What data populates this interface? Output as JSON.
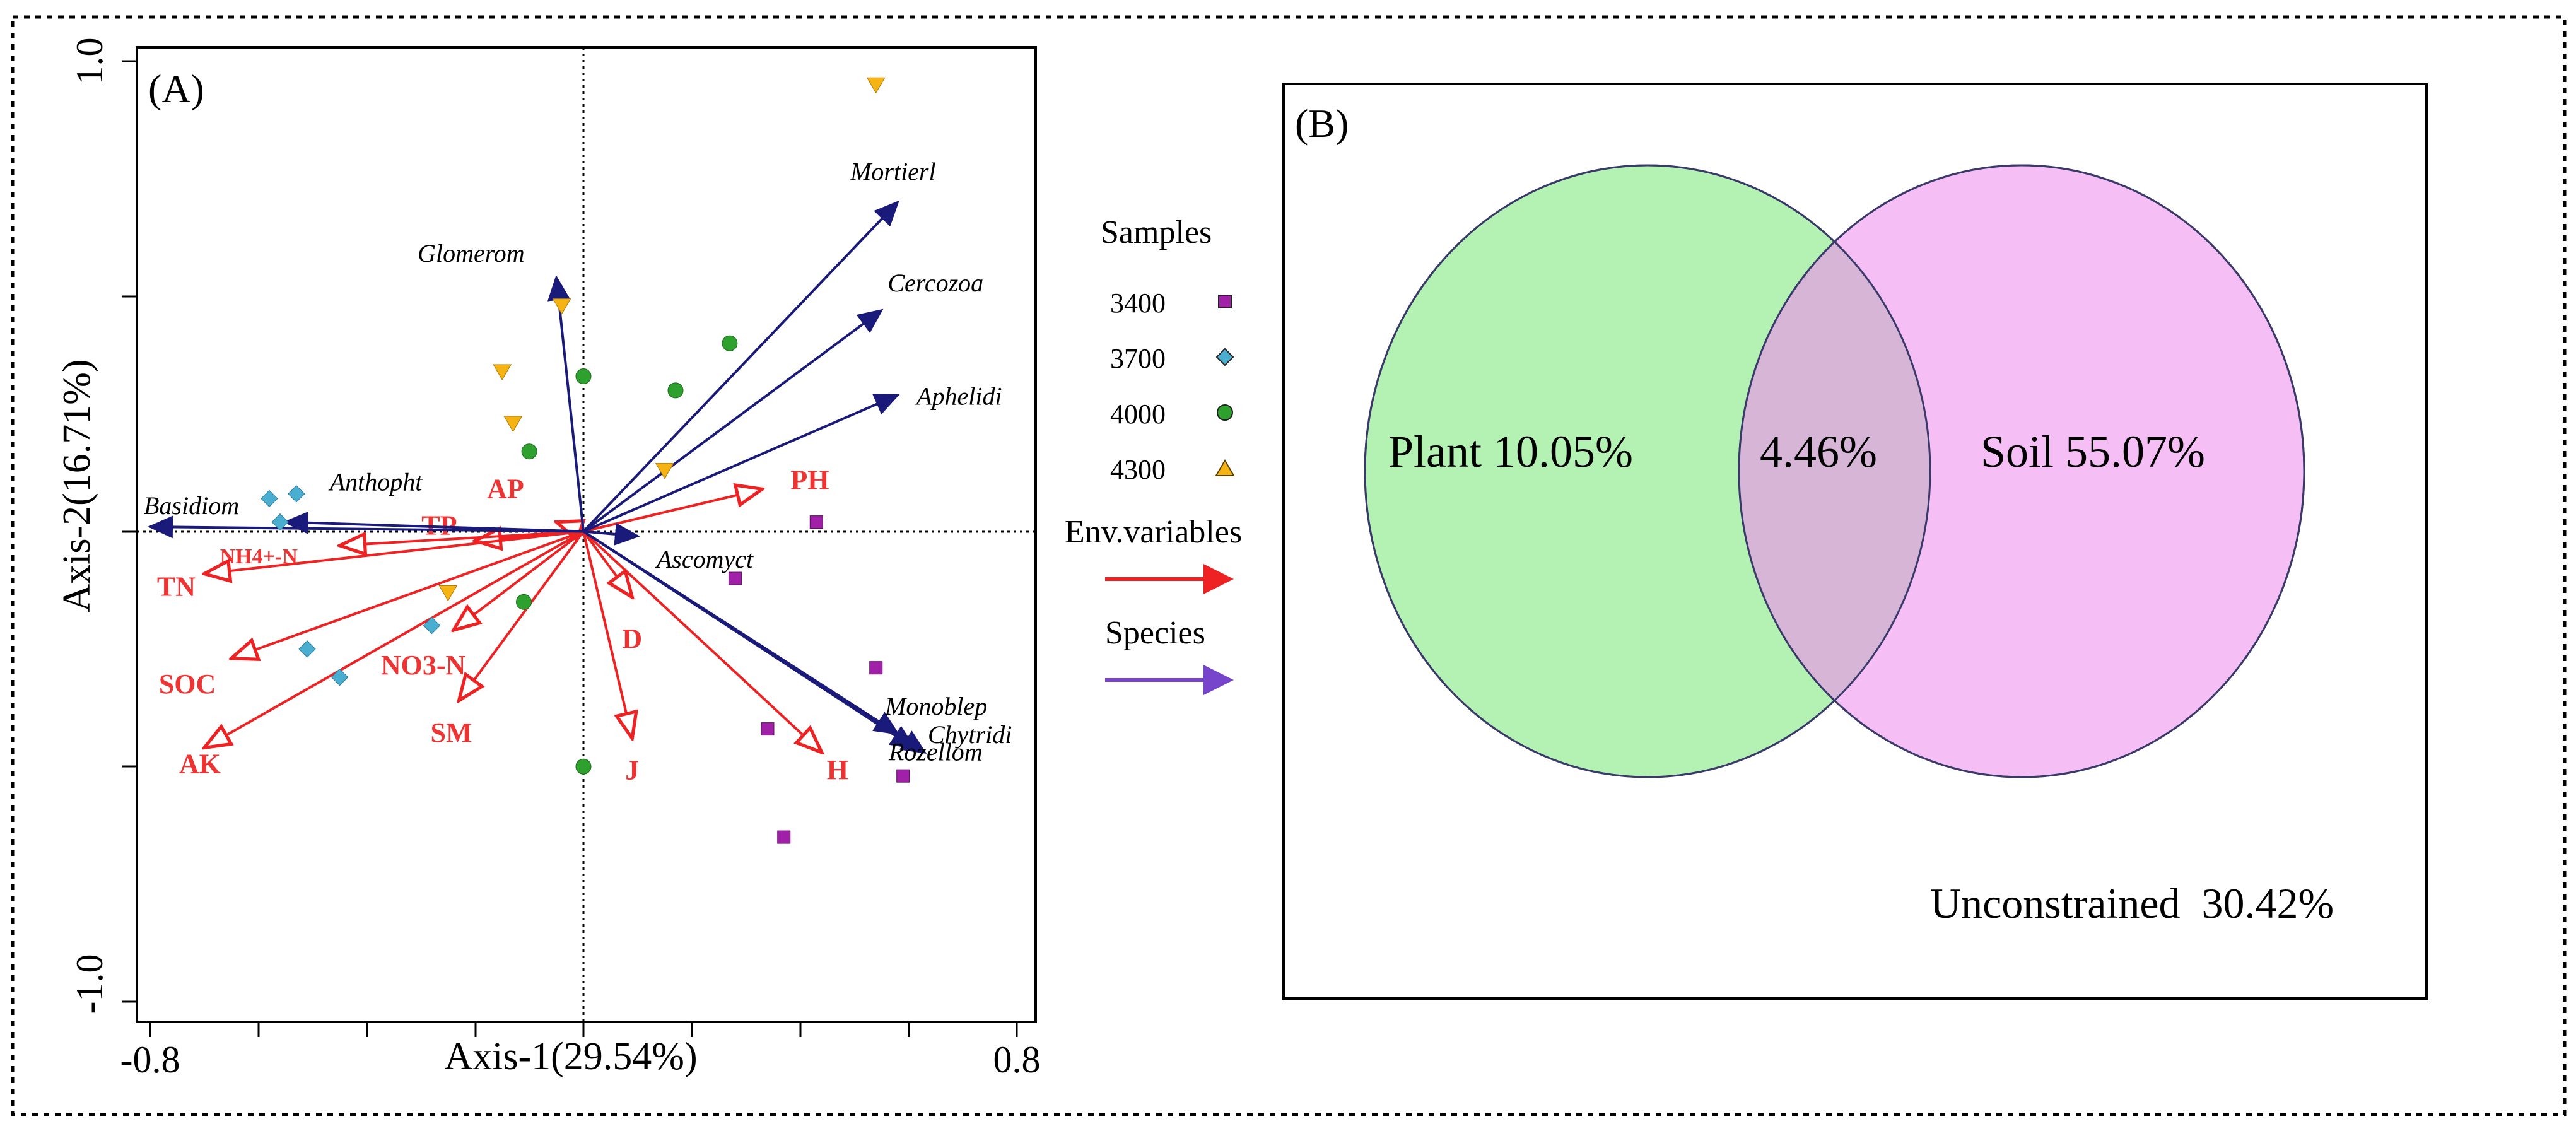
{
  "chart_data": [
    {
      "panel": "(A)",
      "type": "scatter",
      "subtype": "RDA biplot",
      "xlabel": "Axis-1(29.54%)",
      "ylabel": "Axis-2(16.71%)",
      "xlim": [
        -0.8,
        0.8
      ],
      "ylim": [
        -1.0,
        1.0
      ],
      "x_tick_labels": [
        "-0.8",
        "0.8"
      ],
      "y_tick_labels": [
        "1.0",
        "-1.0"
      ],
      "legend": {
        "samples_title": "Samples",
        "samples": [
          {
            "name": "3400",
            "marker": "square",
            "color": "#a020a8"
          },
          {
            "name": "3700",
            "marker": "diamond",
            "color": "#4aaed0"
          },
          {
            "name": "4000",
            "marker": "circle",
            "color": "#2ea02e"
          },
          {
            "name": "4300",
            "marker": "triangle",
            "color": "#f5b414"
          }
        ],
        "env_label": "Env.variables",
        "env_color": "#ee2222",
        "species_label": "Species",
        "species_color": "#7744cc"
      },
      "points": [
        {
          "group": "3400",
          "x": 0.43,
          "y": 0.02
        },
        {
          "group": "3400",
          "x": 0.28,
          "y": -0.1
        },
        {
          "group": "3400",
          "x": 0.54,
          "y": -0.29
        },
        {
          "group": "3400",
          "x": 0.34,
          "y": -0.42
        },
        {
          "group": "3400",
          "x": 0.59,
          "y": -0.52
        },
        {
          "group": "3400",
          "x": 0.37,
          "y": -0.65
        },
        {
          "group": "3700",
          "x": -0.58,
          "y": 0.07
        },
        {
          "group": "3700",
          "x": -0.53,
          "y": 0.08
        },
        {
          "group": "3700",
          "x": -0.56,
          "y": 0.02
        },
        {
          "group": "3700",
          "x": -0.28,
          "y": -0.2
        },
        {
          "group": "3700",
          "x": -0.51,
          "y": -0.25
        },
        {
          "group": "3700",
          "x": -0.45,
          "y": -0.31
        },
        {
          "group": "4000",
          "x": 0.0,
          "y": 0.33
        },
        {
          "group": "4000",
          "x": 0.27,
          "y": 0.4
        },
        {
          "group": "4000",
          "x": 0.17,
          "y": 0.3
        },
        {
          "group": "4000",
          "x": -0.1,
          "y": 0.17
        },
        {
          "group": "4000",
          "x": -0.11,
          "y": -0.15
        },
        {
          "group": "4000",
          "x": 0.0,
          "y": -0.5
        },
        {
          "group": "4300",
          "x": 0.54,
          "y": 0.95
        },
        {
          "group": "4300",
          "x": -0.04,
          "y": 0.48
        },
        {
          "group": "4300",
          "x": -0.15,
          "y": 0.34
        },
        {
          "group": "4300",
          "x": -0.13,
          "y": 0.23
        },
        {
          "group": "4300",
          "x": 0.15,
          "y": 0.13
        },
        {
          "group": "4300",
          "x": -0.25,
          "y": -0.13
        }
      ],
      "env_vectors": [
        {
          "name": "PH",
          "x": 0.33,
          "y": 0.09
        },
        {
          "name": "AP",
          "x": -0.05,
          "y": 0.02
        },
        {
          "name": "TP",
          "x": -0.2,
          "y": -0.02
        },
        {
          "name": "NH4+-N",
          "x": -0.45,
          "y": -0.03
        },
        {
          "name": "TN",
          "x": -0.7,
          "y": -0.09
        },
        {
          "name": "SOC",
          "x": -0.65,
          "y": -0.27
        },
        {
          "name": "AK",
          "x": -0.7,
          "y": -0.46
        },
        {
          "name": "NO3-N",
          "x": -0.24,
          "y": -0.21
        },
        {
          "name": "SM",
          "x": -0.23,
          "y": -0.36
        },
        {
          "name": "D",
          "x": 0.09,
          "y": -0.14
        },
        {
          "name": "J",
          "x": 0.09,
          "y": -0.44
        },
        {
          "name": "H",
          "x": 0.44,
          "y": -0.47
        }
      ],
      "species_vectors": [
        {
          "name": "Mortierl",
          "x": 0.58,
          "y": 0.7
        },
        {
          "name": "Cercozoa",
          "x": 0.55,
          "y": 0.47
        },
        {
          "name": "Aphelidi",
          "x": 0.58,
          "y": 0.29
        },
        {
          "name": "Glomerom",
          "x": -0.05,
          "y": 0.54
        },
        {
          "name": "Anthopht",
          "x": -0.55,
          "y": 0.02
        },
        {
          "name": "Basidiom",
          "x": -0.8,
          "y": 0.01
        },
        {
          "name": "Ascomyct",
          "x": 0.1,
          "y": -0.01
        },
        {
          "name": "Monoblep",
          "x": 0.58,
          "y": -0.43
        },
        {
          "name": "Chytridi",
          "x": 0.63,
          "y": -0.47
        },
        {
          "name": "Rozellom",
          "x": 0.61,
          "y": -0.46
        }
      ]
    },
    {
      "panel": "(B)",
      "type": "venn",
      "sets": [
        {
          "name": "Plant",
          "label": "Plant 10.05%",
          "value": 10.05,
          "color": "#b3f2b3"
        },
        {
          "name": "Soil",
          "label": "Soil 55.07%",
          "value": 55.07,
          "color": "#f5bff5"
        }
      ],
      "intersection": {
        "label": "4.46%",
        "value": 4.46,
        "color": "#d6b5d6"
      },
      "unconstrained": {
        "label": "Unconstrained  30.42%",
        "value": 30.42
      }
    }
  ]
}
